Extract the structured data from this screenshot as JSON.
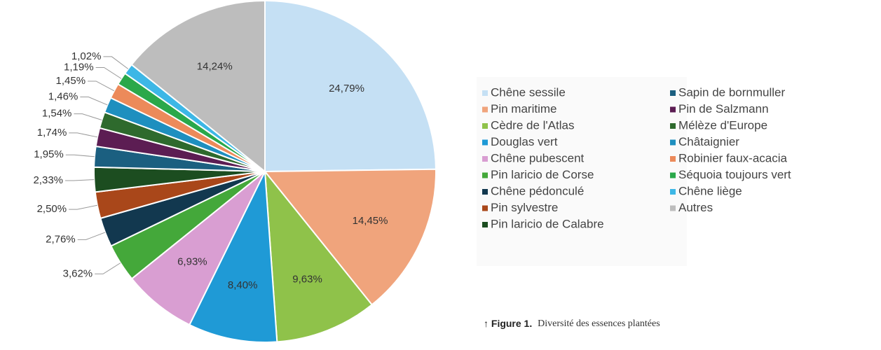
{
  "chart_data": {
    "type": "pie",
    "categories": [
      "Chêne sessile",
      "Pin maritime",
      "Cèdre de l'Atlas",
      "Douglas vert",
      "Chêne pubescent",
      "Pin laricio de Corse",
      "Chêne pédonculé",
      "Pin sylvestre",
      "Pin laricio de Calabre",
      "Sapin de bornmuller",
      "Pin de Salzmann",
      "Mélèze d'Europe",
      "Châtaignier",
      "Robinier faux-acacia",
      "Séquoia toujours vert",
      "Chêne liège",
      "Autres"
    ],
    "values": [
      24.79,
      14.45,
      9.63,
      8.4,
      6.93,
      3.62,
      2.76,
      2.5,
      2.33,
      1.95,
      1.74,
      1.54,
      1.46,
      1.45,
      1.19,
      1.02,
      14.24
    ],
    "value_labels": [
      "24,79%",
      "14,45%",
      "9,63%",
      "8,40%",
      "6,93%",
      "3,62%",
      "2,76%",
      "2,50%",
      "2,33%",
      "1,95%",
      "1,74%",
      "1,54%",
      "1,46%",
      "1,45%",
      "1,19%",
      "1,02%",
      "14,24%"
    ],
    "colors": [
      "#c5e0f4",
      "#f0a47c",
      "#8fc24a",
      "#1f9ad6",
      "#d99ed2",
      "#44a83a",
      "#12384f",
      "#a9471a",
      "#1c4d20",
      "#1b5f80",
      "#5c1d53",
      "#2e6a2d",
      "#1e8fbf",
      "#ec8a5a",
      "#2aa84a",
      "#3db7e6",
      "#bdbdbd"
    ]
  },
  "caption": {
    "label": "↑ Figure 1.",
    "text": "Diversité des essences plantées"
  }
}
